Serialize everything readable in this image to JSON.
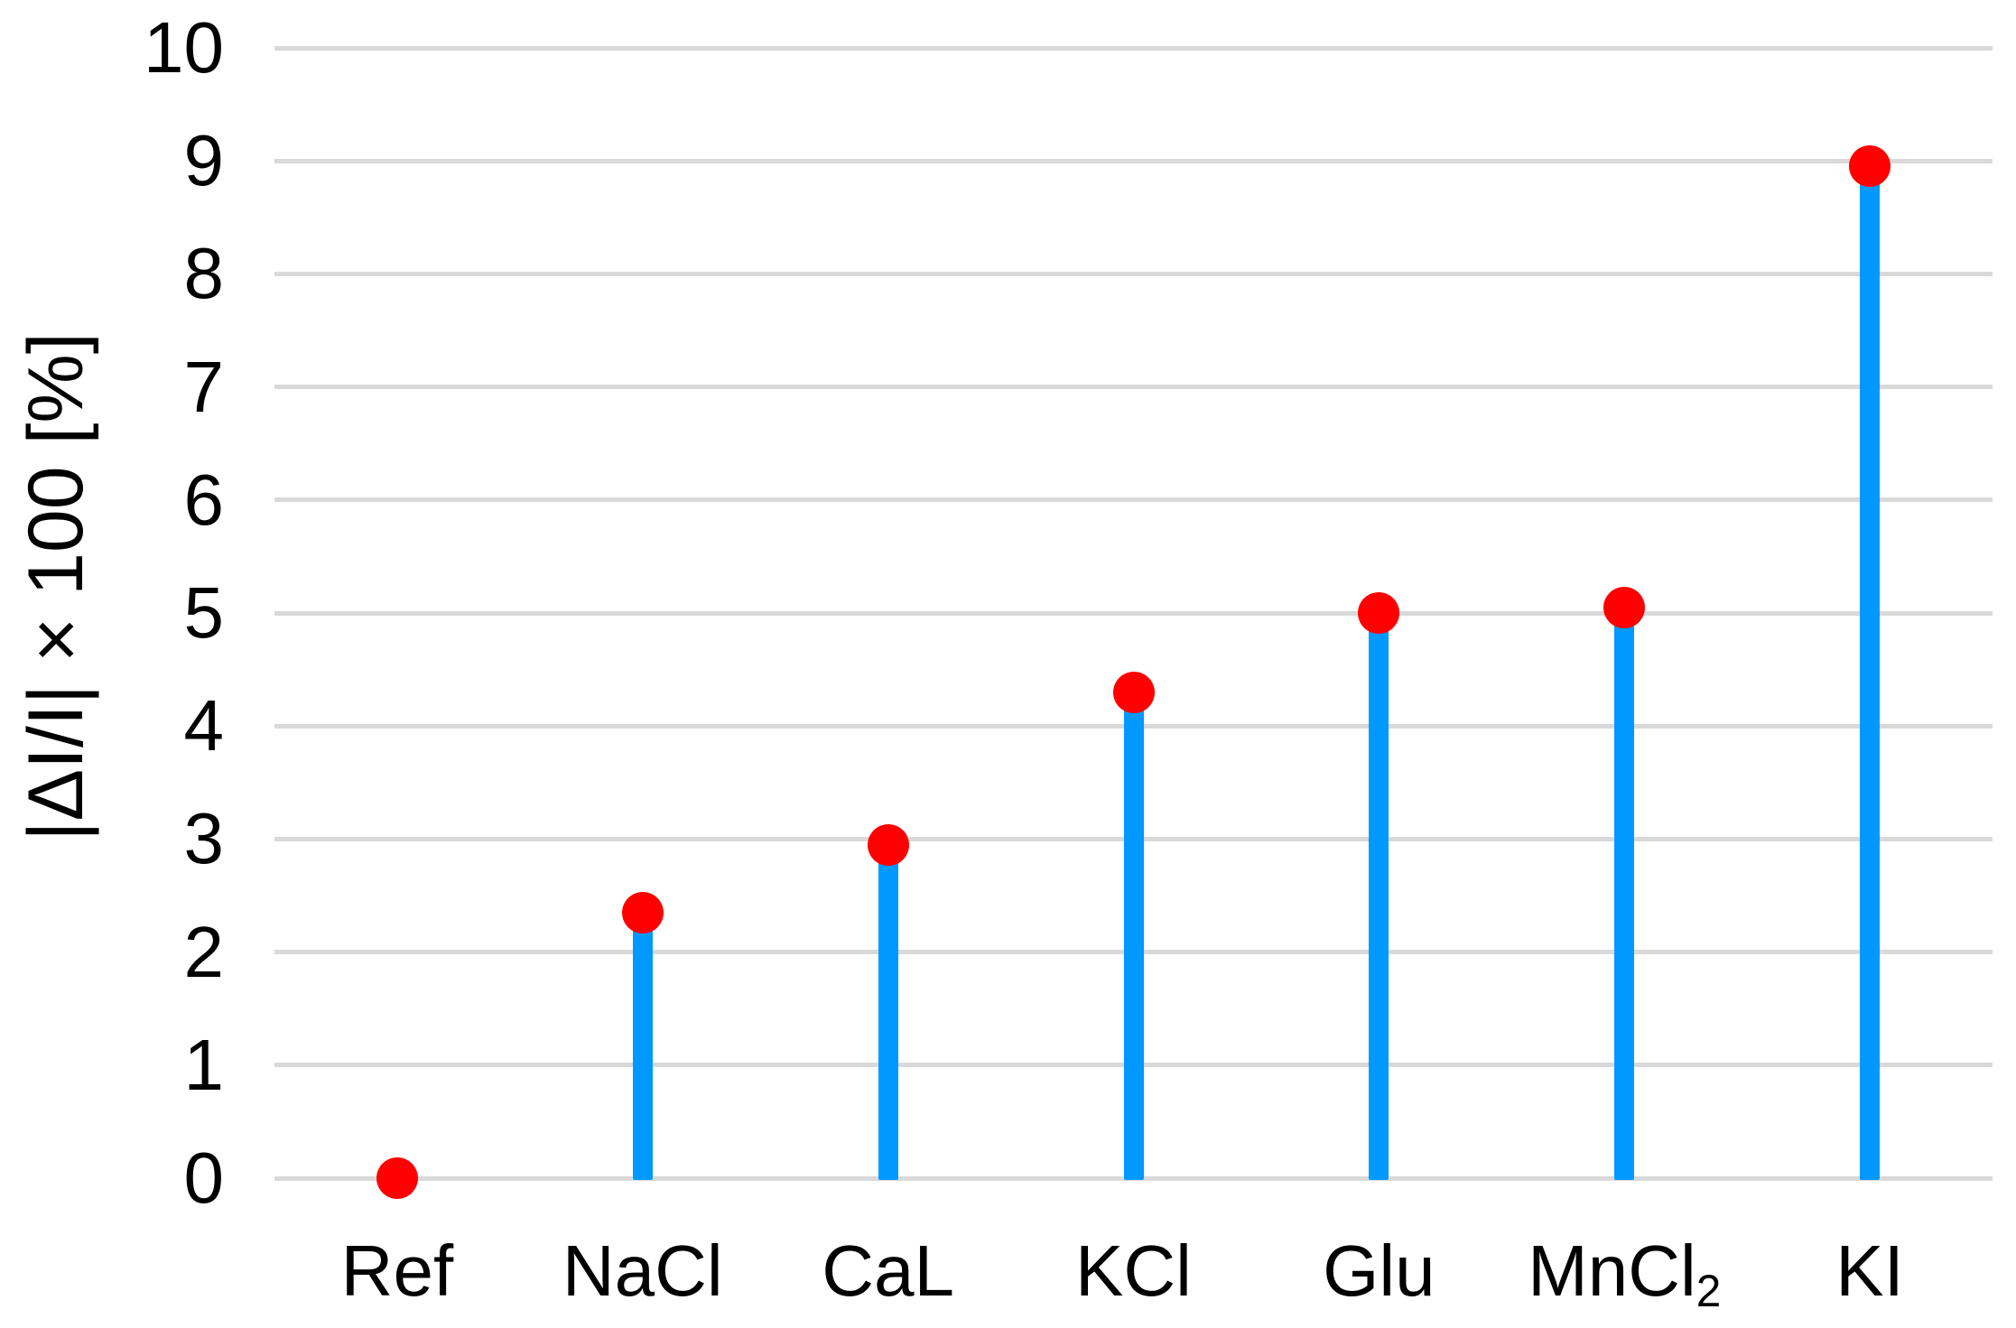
{
  "chart_data": {
    "type": "bar",
    "variant": "lollipop-stem-plot-with-round-markers",
    "title": "",
    "xlabel": "",
    "ylabel": "|ΔI/I| × 100 [%]",
    "categories": [
      {
        "label": "Ref",
        "sub": ""
      },
      {
        "label": "NaCl",
        "sub": ""
      },
      {
        "label": "CaL",
        "sub": ""
      },
      {
        "label": "KCl",
        "sub": ""
      },
      {
        "label": "Glu",
        "sub": ""
      },
      {
        "label": "MnCl",
        "sub": "2"
      },
      {
        "label": "KI",
        "sub": ""
      }
    ],
    "values": [
      0,
      2.35,
      2.95,
      4.3,
      5.0,
      5.05,
      8.95
    ],
    "ylim": [
      0,
      10
    ],
    "yticks": [
      0,
      1,
      2,
      3,
      4,
      5,
      6,
      7,
      8,
      9,
      10
    ],
    "grid": "horizontal",
    "legend": "none",
    "colors": {
      "stem": "#0099FF",
      "marker": "#FF0000",
      "gridline": "#D9D9D9",
      "text": "#000000",
      "background": "#FFFFFF"
    }
  }
}
